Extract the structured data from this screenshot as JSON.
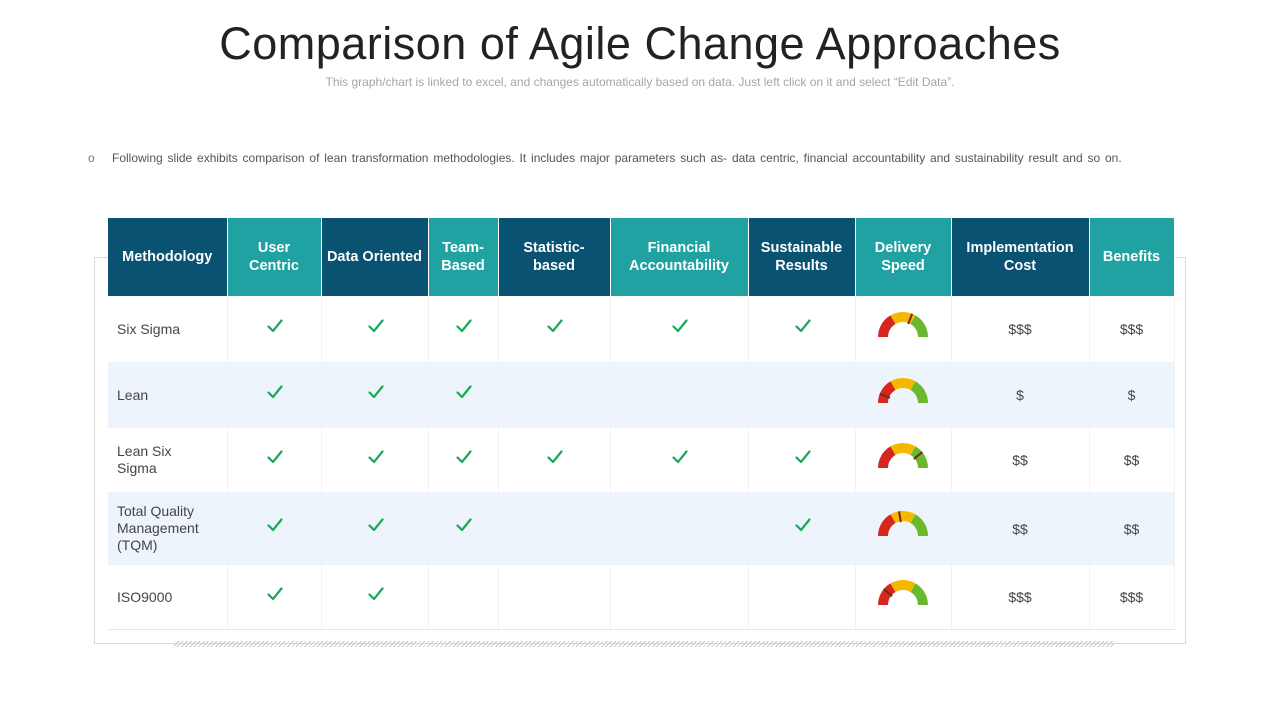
{
  "title": "Comparison of Agile Change Approaches",
  "subtitle": "This graph/chart is linked to excel, and changes automatically based on data. Just left click on it and select “Edit Data”.",
  "bullet": {
    "mark": "o",
    "text": "Following slide exhibits comparison of lean transformation methodologies. It includes major parameters such as- data centric, financial accountability and sustainability result and so on."
  },
  "colors": {
    "header_dark": "#0a5272",
    "header_teal": "#21a2a2",
    "check": "#1aa85a",
    "gauge_red": "#d7261e",
    "gauge_yellow": "#f5b800",
    "gauge_green": "#6ab82e",
    "alt_row": "#edf4fb"
  },
  "table": {
    "headers": [
      {
        "label": "Methodology",
        "style": "dark"
      },
      {
        "label": "User Centric",
        "style": "teal"
      },
      {
        "label": "Data Oriented",
        "style": "dark"
      },
      {
        "label": "Team-Based",
        "style": "teal"
      },
      {
        "label": "Statistic-based",
        "style": "dark"
      },
      {
        "label": "Financial Accountability",
        "style": "teal"
      },
      {
        "label": "Sustainable Results",
        "style": "dark"
      },
      {
        "label": "Delivery Speed",
        "style": "teal"
      },
      {
        "label": "Implementation Cost",
        "style": "dark"
      },
      {
        "label": "Benefits",
        "style": "teal"
      }
    ],
    "rows": [
      {
        "methodology": "Six Sigma",
        "user_centric": true,
        "data_oriented": true,
        "team_based": true,
        "statistic_based": true,
        "financial_accountability": true,
        "sustainable_results": true,
        "delivery_speed": 0.62,
        "implementation_cost": "$$$",
        "benefits": "$$$"
      },
      {
        "methodology": "Lean",
        "user_centric": true,
        "data_oriented": true,
        "team_based": true,
        "statistic_based": false,
        "financial_accountability": false,
        "sustainable_results": false,
        "delivery_speed": 0.12,
        "implementation_cost": "$",
        "benefits": "$"
      },
      {
        "methodology": "Lean Six Sigma",
        "user_centric": true,
        "data_oriented": true,
        "team_based": true,
        "statistic_based": true,
        "financial_accountability": true,
        "sustainable_results": true,
        "delivery_speed": 0.78,
        "implementation_cost": "$$",
        "benefits": "$$"
      },
      {
        "methodology": "Total Quality Management (TQM)",
        "user_centric": true,
        "data_oriented": true,
        "team_based": true,
        "statistic_based": false,
        "financial_accountability": false,
        "sustainable_results": true,
        "delivery_speed": 0.45,
        "implementation_cost": "$$",
        "benefits": "$$"
      },
      {
        "methodology": "ISO9000",
        "user_centric": true,
        "data_oriented": true,
        "team_based": false,
        "statistic_based": false,
        "financial_accountability": false,
        "sustainable_results": false,
        "delivery_speed": 0.22,
        "implementation_cost": "$$$",
        "benefits": "$$$"
      }
    ]
  }
}
